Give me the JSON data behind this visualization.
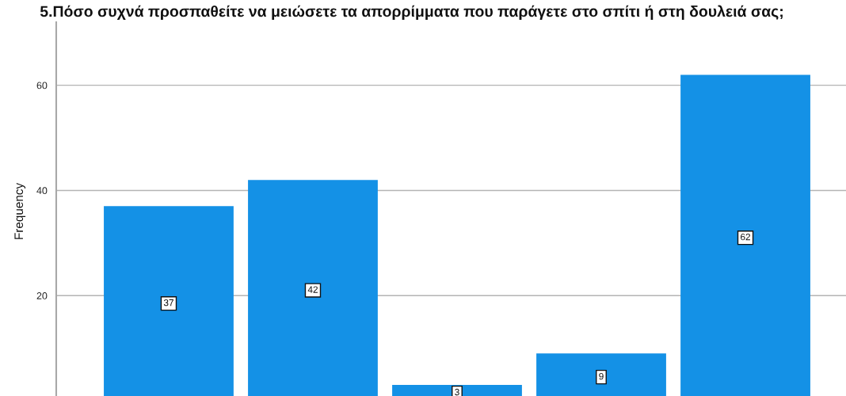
{
  "chart_data": {
    "type": "bar",
    "title": "5.Πόσο συχνά προσπαθείτε να μειώσετε τα απορρίμματα που παράγετε στο σπίτι ή στη δουλειά σας;",
    "ylabel": "Frequency",
    "categories": [
      null,
      null,
      null,
      null,
      null
    ],
    "values": [
      37,
      42,
      3,
      9,
      62
    ],
    "color": "#1491e6",
    "ylim": [
      0,
      72
    ],
    "yticks": [
      20,
      40,
      60
    ],
    "grid": "y",
    "data_labels": true
  }
}
